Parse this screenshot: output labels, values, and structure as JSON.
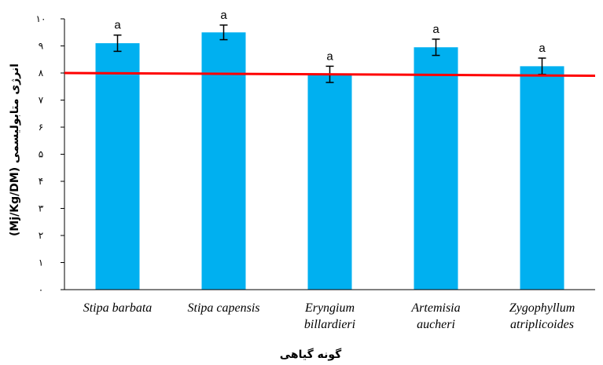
{
  "chart_data": {
    "type": "bar",
    "categories": [
      [
        "Stipa barbata"
      ],
      [
        "Stipa capensis"
      ],
      [
        "Eryngium",
        "billardieri"
      ],
      [
        "Artemisia",
        "aucheri"
      ],
      [
        "Zygophyllum",
        "atriplicoides"
      ]
    ],
    "values": [
      9.1,
      9.5,
      7.95,
      8.95,
      8.25
    ],
    "errors": [
      0.3,
      0.27,
      0.3,
      0.3,
      0.3
    ],
    "significance_letters": [
      "a",
      "a",
      "a",
      "a",
      "a"
    ],
    "reference_line": {
      "y_start": 8.0,
      "y_end": 7.9,
      "color": "#ff0000"
    },
    "ylim": [
      0,
      10
    ],
    "yticks": [
      0,
      1,
      2,
      3,
      4,
      5,
      6,
      7,
      8,
      9,
      10
    ],
    "ytick_labels": [
      "٠",
      "١",
      "٢",
      "٣",
      "۴",
      "۵",
      "۶",
      "٧",
      "٨",
      "٩",
      "١٠"
    ],
    "ylabel": "انرژی متابولیسمی (Mj/Kg/DM)",
    "xlabel": "گونه گیاهی",
    "title": "",
    "bar_color": "#00b0f0",
    "grid": false,
    "legend": "none"
  }
}
